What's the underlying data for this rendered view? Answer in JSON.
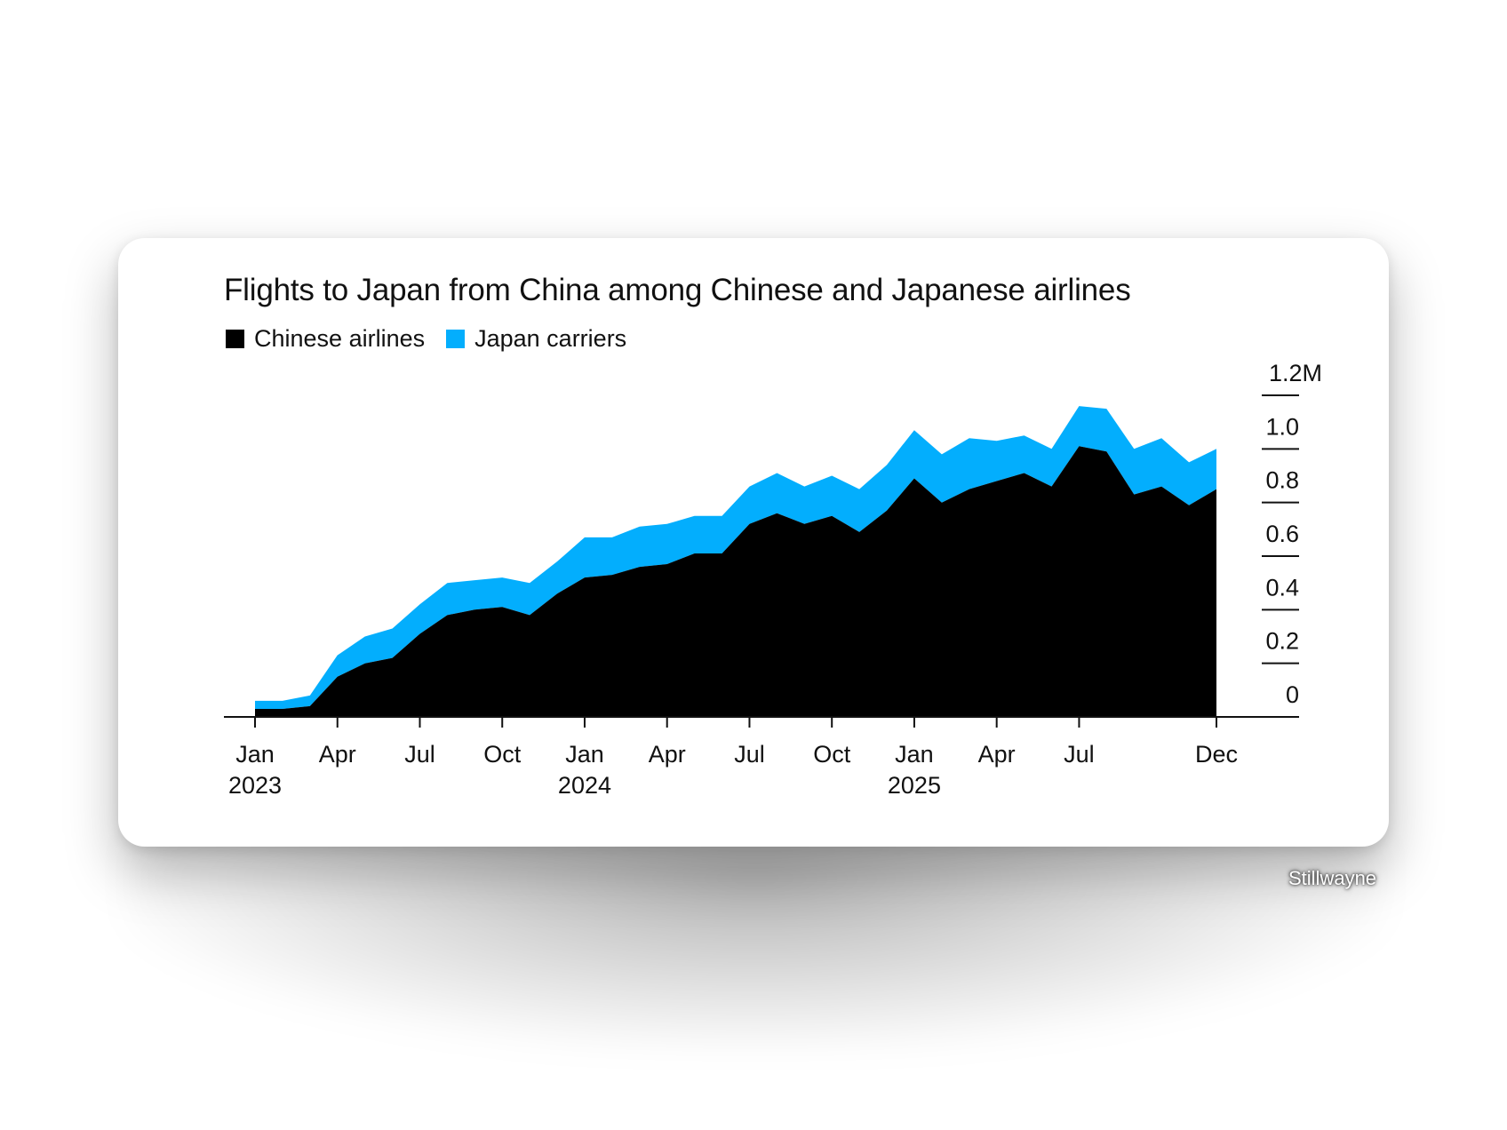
{
  "credit": "Stillwayne",
  "colors": {
    "chinese": "#000000",
    "japan": "#03aefd"
  },
  "chart_data": {
    "type": "area",
    "stacked": true,
    "title": "Flights to Japan from China among Chinese and Japanese airlines",
    "legend": [
      {
        "name": "Chinese airlines",
        "color": "#000000"
      },
      {
        "name": "Japan carriers",
        "color": "#03aefd"
      }
    ],
    "x": [
      "2023-01",
      "2023-02",
      "2023-03",
      "2023-04",
      "2023-05",
      "2023-06",
      "2023-07",
      "2023-08",
      "2023-09",
      "2023-10",
      "2023-11",
      "2023-12",
      "2024-01",
      "2024-02",
      "2024-03",
      "2024-04",
      "2024-05",
      "2024-06",
      "2024-07",
      "2024-08",
      "2024-09",
      "2024-10",
      "2024-11",
      "2024-12",
      "2025-01",
      "2025-02",
      "2025-03",
      "2025-04",
      "2025-05",
      "2025-06",
      "2025-07",
      "2025-08",
      "2025-09",
      "2025-10",
      "2025-11",
      "2025-12"
    ],
    "series": [
      {
        "name": "Chinese airlines",
        "values": [
          0.03,
          0.03,
          0.04,
          0.15,
          0.2,
          0.22,
          0.31,
          0.38,
          0.4,
          0.41,
          0.38,
          0.46,
          0.52,
          0.53,
          0.56,
          0.57,
          0.61,
          0.61,
          0.72,
          0.76,
          0.72,
          0.75,
          0.69,
          0.77,
          0.89,
          0.8,
          0.85,
          0.88,
          0.91,
          0.86,
          1.01,
          0.99,
          0.83,
          0.86,
          0.79,
          0.85
        ]
      },
      {
        "name": "Japan carriers",
        "values": [
          0.03,
          0.03,
          0.04,
          0.08,
          0.1,
          0.11,
          0.11,
          0.12,
          0.11,
          0.11,
          0.12,
          0.12,
          0.15,
          0.14,
          0.15,
          0.15,
          0.14,
          0.14,
          0.14,
          0.15,
          0.14,
          0.15,
          0.16,
          0.17,
          0.18,
          0.18,
          0.19,
          0.15,
          0.14,
          0.14,
          0.15,
          0.16,
          0.17,
          0.18,
          0.16,
          0.15
        ]
      }
    ],
    "yticks": [
      {
        "value": 0,
        "label": "0"
      },
      {
        "value": 0.2,
        "label": "0.2"
      },
      {
        "value": 0.4,
        "label": "0.4"
      },
      {
        "value": 0.6,
        "label": "0.6"
      },
      {
        "value": 0.8,
        "label": "0.8"
      },
      {
        "value": 1.0,
        "label": "1.0"
      },
      {
        "value": 1.2,
        "label": "1.2M"
      }
    ],
    "ylim": [
      0,
      1.2
    ],
    "y_axis_side": "right",
    "xticks": [
      {
        "x": "2023-01",
        "label": "Jan",
        "year": "2023"
      },
      {
        "x": "2023-04",
        "label": "Apr"
      },
      {
        "x": "2023-07",
        "label": "Jul"
      },
      {
        "x": "2023-10",
        "label": "Oct"
      },
      {
        "x": "2024-01",
        "label": "Jan",
        "year": "2024"
      },
      {
        "x": "2024-04",
        "label": "Apr"
      },
      {
        "x": "2024-07",
        "label": "Jul"
      },
      {
        "x": "2024-10",
        "label": "Oct"
      },
      {
        "x": "2025-01",
        "label": "Jan",
        "year": "2025"
      },
      {
        "x": "2025-04",
        "label": "Apr"
      },
      {
        "x": "2025-07",
        "label": "Jul"
      },
      {
        "x": "2025-12",
        "label": "Dec"
      }
    ],
    "grid": false,
    "legend_position": "top-left"
  }
}
